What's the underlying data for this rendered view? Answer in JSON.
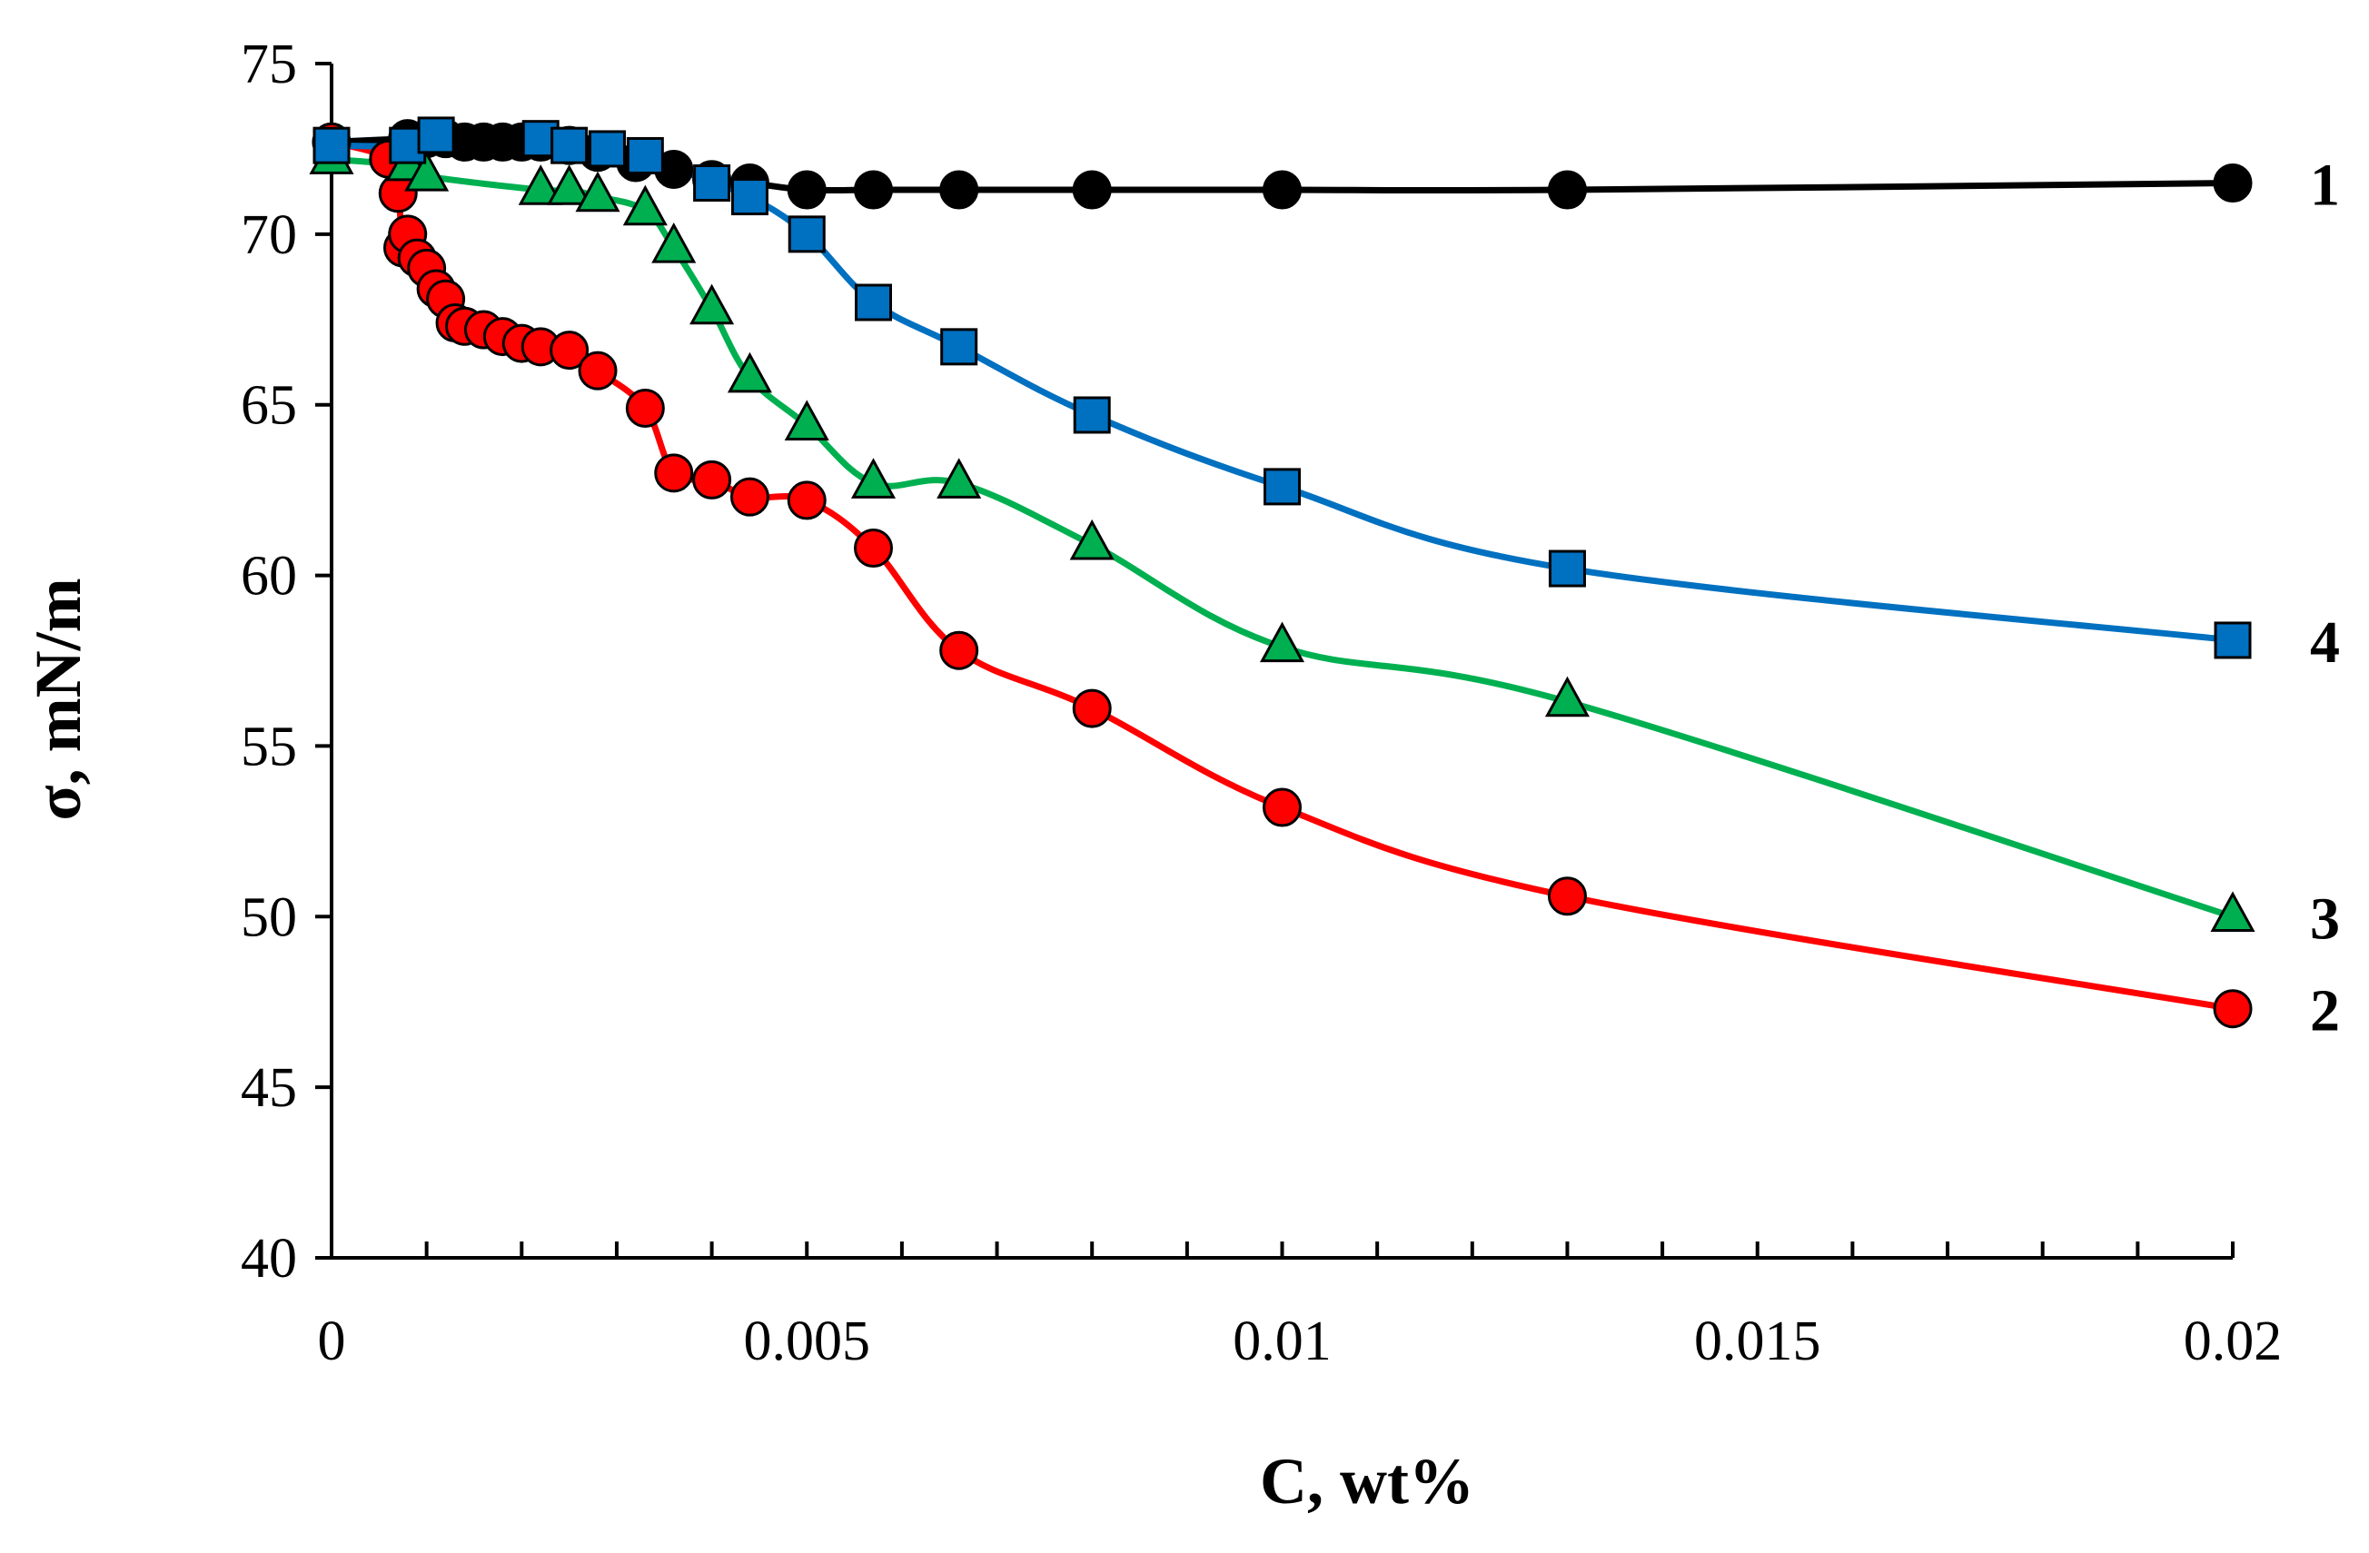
{
  "chart_data": {
    "type": "line",
    "title": "",
    "xlabel": "C, wt%",
    "ylabel": "σ, mN/m",
    "xlim": [
      0,
      0.02
    ],
    "ylim": [
      40,
      75
    ],
    "x_ticks": [
      0,
      0.005,
      0.01,
      0.015,
      0.02
    ],
    "x_tick_labels": [
      "0",
      "0.005",
      "0.01",
      "0.015",
      "0.02"
    ],
    "x_minor_step": 0.001,
    "y_ticks": [
      40,
      45,
      50,
      55,
      60,
      65,
      70,
      75
    ],
    "y_tick_labels": [
      "40",
      "45",
      "50",
      "55",
      "60",
      "65",
      "70",
      "75"
    ],
    "grid": false,
    "series": [
      {
        "name": "1",
        "color": "#000000",
        "marker": "circle",
        "marker_fill": "#000000",
        "x": [
          0,
          0.0008,
          0.001,
          0.0012,
          0.0014,
          0.0016,
          0.0018,
          0.002,
          0.0022,
          0.0025,
          0.0028,
          0.0032,
          0.0036,
          0.004,
          0.0044,
          0.005,
          0.0057,
          0.0066,
          0.008,
          0.01,
          0.013,
          0.02
        ],
        "y": [
          72.7,
          72.8,
          72.8,
          72.8,
          72.7,
          72.7,
          72.7,
          72.7,
          72.7,
          72.6,
          72.4,
          72.1,
          71.9,
          71.6,
          71.5,
          71.3,
          71.3,
          71.3,
          71.3,
          71.3,
          71.3,
          71.5
        ]
      },
      {
        "name": "2",
        "color": "#ff0000",
        "marker": "circle",
        "marker_fill": "#ff0000",
        "x": [
          0,
          0.0006,
          0.0007,
          0.00075,
          0.0008,
          0.0009,
          0.001,
          0.0011,
          0.0012,
          0.0013,
          0.0014,
          0.0016,
          0.0018,
          0.002,
          0.0022,
          0.0025,
          0.0028,
          0.0033,
          0.0036,
          0.004,
          0.0044,
          0.005,
          0.0057,
          0.0066,
          0.008,
          0.01,
          0.013,
          0.02
        ],
        "y": [
          72.7,
          72.2,
          71.2,
          69.6,
          70.0,
          69.3,
          69.0,
          68.4,
          68.1,
          67.4,
          67.3,
          67.2,
          67.0,
          66.8,
          66.7,
          66.6,
          66.0,
          64.9,
          63.0,
          62.8,
          62.3,
          62.2,
          60.8,
          57.8,
          56.1,
          53.2,
          50.6,
          47.3
        ]
      },
      {
        "name": "3",
        "color": "#00b050",
        "marker": "triangle",
        "marker_fill": "#00b050",
        "x": [
          0,
          0.0008,
          0.001,
          0.0022,
          0.0025,
          0.0028,
          0.0033,
          0.0036,
          0.004,
          0.0044,
          0.005,
          0.0057,
          0.0066,
          0.008,
          0.01,
          0.013,
          0.02
        ],
        "y": [
          72.2,
          72.0,
          71.7,
          71.3,
          71.3,
          71.1,
          70.7,
          69.6,
          67.8,
          65.8,
          64.4,
          62.7,
          62.7,
          60.9,
          57.9,
          56.3,
          50.0
        ]
      },
      {
        "name": "4",
        "color": "#0070c0",
        "marker": "square",
        "marker_fill": "#0070c0",
        "x": [
          0,
          0.0008,
          0.0011,
          0.0022,
          0.0025,
          0.0029,
          0.0033,
          0.004,
          0.0044,
          0.005,
          0.0057,
          0.0066,
          0.008,
          0.01,
          0.013,
          0.02
        ],
        "y": [
          72.6,
          72.6,
          72.9,
          72.8,
          72.6,
          72.5,
          72.3,
          71.5,
          71.1,
          70.0,
          68.0,
          66.7,
          64.7,
          62.6,
          60.2,
          58.1
        ]
      }
    ]
  }
}
